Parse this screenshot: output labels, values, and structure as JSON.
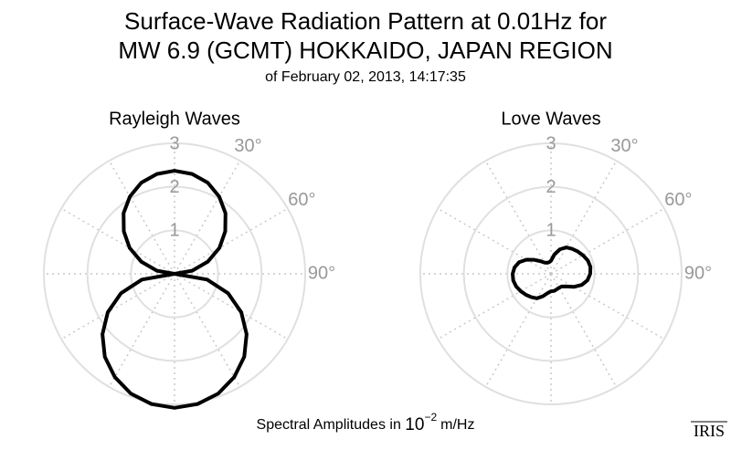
{
  "title": [
    "Surface-Wave Radiation Pattern at 0.01Hz for",
    "MW 6.9 (GCMT) HOKKAIDO, JAPAN REGION"
  ],
  "subtitle": "of February 02, 2013, 14:17:35",
  "caption": {
    "text": "Spectral Amplitudes in",
    "base": "10",
    "exponent": "−2",
    "unit": "m/Hz"
  },
  "logo": "IRIS",
  "chart_data": [
    {
      "type": "polar",
      "title": "Rayleigh Waves",
      "color": "#000000",
      "theta": [
        0,
        10,
        20,
        30,
        40,
        50,
        60,
        70,
        80,
        90,
        100,
        110,
        120,
        130,
        140,
        150,
        160,
        170,
        180,
        190,
        200,
        210,
        220,
        230,
        240,
        250,
        260,
        270,
        280,
        290,
        300,
        310,
        320,
        330,
        340,
        350
      ],
      "values": [
        2.37,
        2.33,
        2.23,
        2.05,
        1.82,
        1.52,
        1.19,
        0.81,
        0.41,
        0,
        0.76,
        1.31,
        1.77,
        2.16,
        2.49,
        2.74,
        2.93,
        3.04,
        3.08,
        3.04,
        2.93,
        2.74,
        2.49,
        2.16,
        1.77,
        1.31,
        0.76,
        0,
        0.41,
        0.81,
        1.19,
        1.52,
        1.82,
        2.05,
        2.23,
        2.33
      ],
      "rlim": [
        0,
        3
      ],
      "rticks": [
        1,
        2,
        3
      ],
      "thetagrid": [
        0,
        30,
        60,
        90,
        120,
        150,
        180,
        210,
        240,
        270,
        300,
        330
      ],
      "thetaticks": [
        {
          "value": 30,
          "label": "30°"
        },
        {
          "value": 60,
          "label": "60°"
        },
        {
          "value": 90,
          "label": "90°"
        }
      ]
    },
    {
      "type": "polar",
      "title": "Love Waves",
      "color": "#000000",
      "theta": [
        0,
        10,
        20,
        30,
        40,
        50,
        60,
        70,
        80,
        90,
        100,
        110,
        120,
        130,
        140,
        150,
        160,
        170,
        180,
        190,
        200,
        210,
        220,
        230,
        240,
        250,
        260,
        270,
        280,
        290,
        300,
        310,
        320,
        330,
        340,
        350
      ],
      "values": [
        0.3,
        0.45,
        0.6,
        0.7,
        0.75,
        0.8,
        0.85,
        0.9,
        0.92,
        0.9,
        0.85,
        0.75,
        0.6,
        0.45,
        0.38,
        0.37,
        0.38,
        0.4,
        0.4,
        0.45,
        0.55,
        0.65,
        0.7,
        0.75,
        0.8,
        0.85,
        0.88,
        0.88,
        0.85,
        0.78,
        0.65,
        0.5,
        0.38,
        0.3,
        0.27,
        0.27
      ],
      "rlim": [
        0,
        3
      ],
      "rticks": [
        1,
        2,
        3
      ],
      "thetagrid": [
        0,
        30,
        60,
        90,
        120,
        150,
        180,
        210,
        240,
        270,
        300,
        330
      ],
      "thetaticks": [
        {
          "value": 30,
          "label": "30°"
        },
        {
          "value": 60,
          "label": "60°"
        },
        {
          "value": 90,
          "label": "90°"
        }
      ]
    }
  ]
}
